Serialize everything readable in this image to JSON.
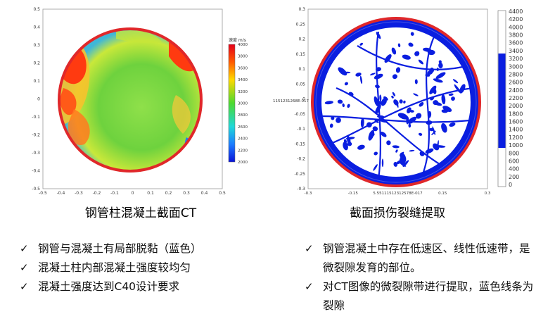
{
  "left_figure": {
    "y_ticks": [
      "0.5",
      "0.4",
      "0.3",
      "0.2",
      "0.1",
      "0",
      "-0.1",
      "-0.2",
      "-0.3",
      "-0.4",
      "-0.5"
    ],
    "x_ticks": [
      "-0.5",
      "-0.4",
      "-0.3",
      "-0.2",
      "-0.1",
      "0",
      "0.1",
      "0.2",
      "0.3",
      "0.4",
      "0.5"
    ],
    "colorbar_title": "速度 m/s",
    "colorbar_ticks": [
      "4000",
      "3800",
      "3600",
      "3400",
      "3200",
      "3000",
      "2800",
      "2600",
      "2400",
      "2200",
      "2000"
    ],
    "colors": {
      "ring": "#e0282a",
      "low": "#1f3cff",
      "mid": "#5cd63a",
      "high": "#ff2a00"
    }
  },
  "right_figure": {
    "y_ticks": [
      "0.3",
      "0.25",
      "0.2",
      "0.15",
      "0.1",
      "0.05",
      "0",
      "-0.05",
      "-0.1",
      "-0.15",
      "-0.2",
      "-0.25",
      "-0.3"
    ],
    "y_side_label": "1151231268E-017",
    "x_ticks": [
      "-0.3",
      "-0.15",
      "5.55111512312578E-017",
      "0.15",
      "0.3"
    ],
    "colorbar_ticks": [
      "4400",
      "4200",
      "4000",
      "3800",
      "3600",
      "3400",
      "3200",
      "3000",
      "2800",
      "2600",
      "2400",
      "2200",
      "2000",
      "1800",
      "1600",
      "1400",
      "1200",
      "1000",
      "800",
      "600",
      "400",
      "200",
      "0"
    ],
    "colors": {
      "ring": "#e0282a",
      "crack": "#0a1ee0"
    }
  },
  "captions": {
    "left": "钢管柱混凝土截面CT",
    "right": "截面损伤裂缝提取"
  },
  "left_bullets": [
    {
      "check": "✓",
      "text": "钢管与混凝土有局部脱黏（蓝色）"
    },
    {
      "check": "✓",
      "text": "混凝土柱内部混凝土强度较均匀"
    },
    {
      "check": "✓",
      "text": "混凝土强度达到C40设计要求"
    }
  ],
  "right_bullets": [
    {
      "check": "✓",
      "text": "钢管混凝土中存在低速区、线性低速带，是微裂隙发育的部位。"
    },
    {
      "check": "✓",
      "text": "对CT图像的微裂隙带进行提取，蓝色线条为裂隙"
    }
  ]
}
